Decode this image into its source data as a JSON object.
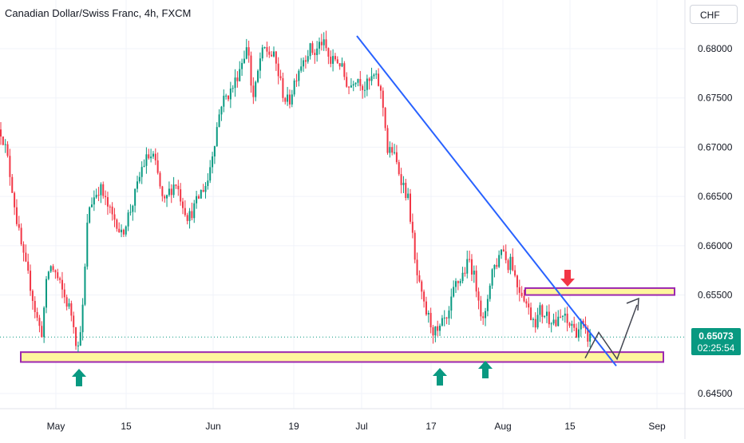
{
  "header": {
    "title": "Canadian Dollar/Swiss Franc, 4h, FXCM",
    "currency": "CHF"
  },
  "price_badge": {
    "price": "0.65073",
    "countdown": "02:25:54"
  },
  "colors": {
    "up": "#089981",
    "down": "#f23645",
    "trendline": "#2962ff",
    "zone_fill": "#fff59d",
    "zone_border": "#9c27b0",
    "projection": "#434651",
    "current_price_line": "#089981",
    "grid": "#f0f3fa"
  },
  "chart_data": {
    "type": "candlestick",
    "symbol": "Canadian Dollar/Swiss Franc",
    "interval": "4h",
    "source": "FXCM",
    "x_ticks": [
      "May",
      "15",
      "Jun",
      "19",
      "Jul",
      "17",
      "Aug",
      "15",
      "Sep"
    ],
    "y_ticks": [
      "0.68000",
      "0.67500",
      "0.67000",
      "0.66500",
      "0.66000",
      "0.65500",
      "0.64500"
    ],
    "y_range": [
      0.6433,
      0.6858
    ],
    "grid": true,
    "last_price": 0.65073,
    "price_path": [
      [
        0,
        0.6718
      ],
      [
        2,
        0.6715
      ],
      [
        8,
        0.6695
      ],
      [
        15,
        0.666
      ],
      [
        22,
        0.662
      ],
      [
        30,
        0.6585
      ],
      [
        38,
        0.656
      ],
      [
        45,
        0.653
      ],
      [
        52,
        0.651
      ],
      [
        58,
        0.656
      ],
      [
        62,
        0.658
      ],
      [
        68,
        0.6575
      ],
      [
        75,
        0.656
      ],
      [
        82,
        0.6545
      ],
      [
        88,
        0.6535
      ],
      [
        93,
        0.652
      ],
      [
        97,
        0.649
      ],
      [
        101,
        0.652
      ],
      [
        105,
        0.6545
      ],
      [
        108,
        0.661
      ],
      [
        112,
        0.664
      ],
      [
        118,
        0.665
      ],
      [
        125,
        0.666
      ],
      [
        132,
        0.6645
      ],
      [
        140,
        0.663
      ],
      [
        146,
        0.6625
      ],
      [
        152,
        0.661
      ],
      [
        158,
        0.6625
      ],
      [
        165,
        0.664
      ],
      [
        172,
        0.666
      ],
      [
        178,
        0.668
      ],
      [
        185,
        0.669
      ],
      [
        192,
        0.669
      ],
      [
        198,
        0.667
      ],
      [
        205,
        0.664
      ],
      [
        212,
        0.6655
      ],
      [
        220,
        0.6665
      ],
      [
        228,
        0.6645
      ],
      [
        236,
        0.6628
      ],
      [
        244,
        0.664
      ],
      [
        252,
        0.6655
      ],
      [
        260,
        0.6665
      ],
      [
        265,
        0.669
      ],
      [
        270,
        0.6712
      ],
      [
        277,
        0.6745
      ],
      [
        284,
        0.6752
      ],
      [
        290,
        0.6758
      ],
      [
        296,
        0.677
      ],
      [
        302,
        0.6785
      ],
      [
        308,
        0.68
      ],
      [
        312,
        0.6795
      ],
      [
        316,
        0.6745
      ],
      [
        320,
        0.676
      ],
      [
        326,
        0.679
      ],
      [
        332,
        0.68
      ],
      [
        338,
        0.6795
      ],
      [
        344,
        0.679
      ],
      [
        350,
        0.677
      ],
      [
        356,
        0.675
      ],
      [
        362,
        0.6745
      ],
      [
        368,
        0.6765
      ],
      [
        374,
        0.678
      ],
      [
        380,
        0.679
      ],
      [
        388,
        0.68
      ],
      [
        395,
        0.6795
      ],
      [
        402,
        0.6808
      ],
      [
        408,
        0.68
      ],
      [
        414,
        0.6785
      ],
      [
        420,
        0.679
      ],
      [
        426,
        0.6785
      ],
      [
        432,
        0.677
      ],
      [
        438,
        0.676
      ],
      [
        444,
        0.6772
      ],
      [
        450,
        0.677
      ],
      [
        456,
        0.676
      ],
      [
        462,
        0.6765
      ],
      [
        468,
        0.6772
      ],
      [
        474,
        0.6765
      ],
      [
        478,
        0.675
      ],
      [
        482,
        0.673
      ],
      [
        486,
        0.669
      ],
      [
        490,
        0.67
      ],
      [
        496,
        0.6685
      ],
      [
        502,
        0.667
      ],
      [
        508,
        0.6655
      ],
      [
        512,
        0.6645
      ],
      [
        516,
        0.6615
      ],
      [
        520,
        0.658
      ],
      [
        526,
        0.6555
      ],
      [
        532,
        0.6535
      ],
      [
        538,
        0.6525
      ],
      [
        542,
        0.6515
      ],
      [
        548,
        0.651
      ],
      [
        552,
        0.6515
      ],
      [
        556,
        0.6525
      ],
      [
        560,
        0.652
      ],
      [
        566,
        0.6545
      ],
      [
        570,
        0.656
      ],
      [
        576,
        0.6565
      ],
      [
        582,
        0.6575
      ],
      [
        588,
        0.6585
      ],
      [
        592,
        0.6575
      ],
      [
        596,
        0.656
      ],
      [
        600,
        0.655
      ],
      [
        604,
        0.652
      ],
      [
        608,
        0.6528
      ],
      [
        612,
        0.6555
      ],
      [
        616,
        0.6575
      ],
      [
        620,
        0.658
      ],
      [
        624,
        0.6585
      ],
      [
        628,
        0.66
      ],
      [
        632,
        0.6592
      ],
      [
        636,
        0.658
      ],
      [
        640,
        0.659
      ],
      [
        644,
        0.6572
      ],
      [
        648,
        0.656
      ],
      [
        652,
        0.6555
      ],
      [
        656,
        0.655
      ],
      [
        660,
        0.654
      ],
      [
        664,
        0.653
      ],
      [
        668,
        0.6528
      ],
      [
        672,
        0.6522
      ],
      [
        676,
        0.6535
      ],
      [
        680,
        0.653
      ],
      [
        684,
        0.6532
      ],
      [
        688,
        0.6526
      ],
      [
        692,
        0.6528
      ],
      [
        696,
        0.652
      ],
      [
        700,
        0.6523
      ],
      [
        704,
        0.653
      ],
      [
        708,
        0.6525
      ],
      [
        712,
        0.6518
      ],
      [
        716,
        0.6522
      ],
      [
        720,
        0.6512
      ],
      [
        724,
        0.6515
      ],
      [
        728,
        0.652
      ],
      [
        732,
        0.6512
      ],
      [
        736,
        0.6507
      ],
      [
        740,
        0.65073
      ]
    ],
    "price_path_x_domain": [
      0,
      932
    ],
    "annotations": {
      "resistance_zone": {
        "from": 0.655,
        "to": 0.6557
      },
      "support_zone": {
        "from": 0.6482,
        "to": 0.6492
      },
      "trendline": {
        "from_price": 0.6813,
        "to_price": 0.6478
      },
      "projection_path": [
        0.6486,
        0.6512,
        0.6485,
        0.654
      ]
    }
  }
}
